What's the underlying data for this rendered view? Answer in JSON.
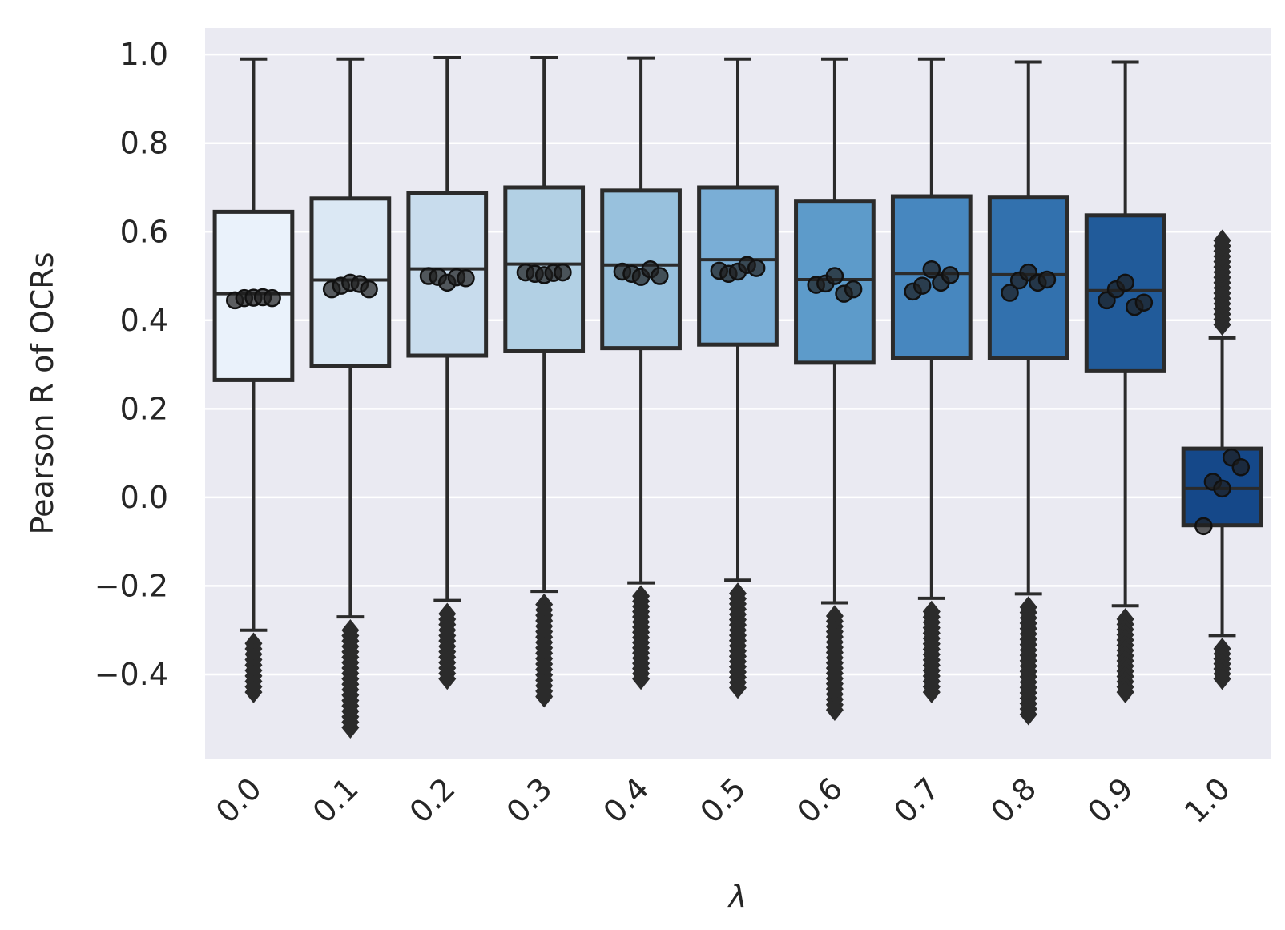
{
  "chart_data": {
    "type": "box",
    "xlabel": "λ",
    "ylabel": "Pearson R of OCRs",
    "categories": [
      "0.0",
      "0.1",
      "0.2",
      "0.3",
      "0.4",
      "0.5",
      "0.6",
      "0.7",
      "0.8",
      "0.9",
      "1.0"
    ],
    "yticks": [
      "1.0",
      "0.8",
      "0.6",
      "0.4",
      "0.2",
      "0.0",
      "−0.2",
      "−0.4"
    ],
    "ylim": [
      -0.59,
      1.06
    ],
    "grid": true,
    "boxes": [
      {
        "q1": 0.265,
        "median": 0.46,
        "q3": 0.645,
        "whisker_low": -0.3,
        "whisker_high": 0.99,
        "outlier_min": -0.44,
        "outlier_max": null,
        "points": [
          0.445,
          0.45,
          0.451,
          0.452,
          0.45
        ]
      },
      {
        "q1": 0.297,
        "median": 0.491,
        "q3": 0.675,
        "whisker_low": -0.27,
        "whisker_high": 0.99,
        "outlier_min": -0.52,
        "outlier_max": null,
        "points": [
          0.47,
          0.478,
          0.485,
          0.482,
          0.47
        ]
      },
      {
        "q1": 0.32,
        "median": 0.516,
        "q3": 0.688,
        "whisker_low": -0.233,
        "whisker_high": 0.993,
        "outlier_min": -0.41,
        "outlier_max": null,
        "points": [
          0.5,
          0.498,
          0.485,
          0.497,
          0.495
        ]
      },
      {
        "q1": 0.33,
        "median": 0.527,
        "q3": 0.7,
        "whisker_low": -0.212,
        "whisker_high": 0.993,
        "outlier_min": -0.45,
        "outlier_max": null,
        "points": [
          0.508,
          0.505,
          0.502,
          0.507,
          0.508
        ]
      },
      {
        "q1": 0.337,
        "median": 0.525,
        "q3": 0.693,
        "whisker_low": -0.193,
        "whisker_high": 0.992,
        "outlier_min": -0.41,
        "outlier_max": null,
        "points": [
          0.51,
          0.505,
          0.498,
          0.515,
          0.5
        ]
      },
      {
        "q1": 0.345,
        "median": 0.537,
        "q3": 0.7,
        "whisker_low": -0.187,
        "whisker_high": 0.99,
        "outlier_min": -0.43,
        "outlier_max": null,
        "points": [
          0.512,
          0.505,
          0.51,
          0.525,
          0.518
        ]
      },
      {
        "q1": 0.304,
        "median": 0.492,
        "q3": 0.668,
        "whisker_low": -0.238,
        "whisker_high": 0.99,
        "outlier_min": -0.48,
        "outlier_max": null,
        "points": [
          0.48,
          0.483,
          0.5,
          0.46,
          0.47
        ]
      },
      {
        "q1": 0.315,
        "median": 0.506,
        "q3": 0.68,
        "whisker_low": -0.228,
        "whisker_high": 0.99,
        "outlier_min": -0.44,
        "outlier_max": null,
        "points": [
          0.465,
          0.478,
          0.515,
          0.485,
          0.502
        ]
      },
      {
        "q1": 0.315,
        "median": 0.503,
        "q3": 0.677,
        "whisker_low": -0.218,
        "whisker_high": 0.983,
        "outlier_min": -0.49,
        "outlier_max": null,
        "points": [
          0.462,
          0.49,
          0.508,
          0.485,
          0.492
        ]
      },
      {
        "q1": 0.285,
        "median": 0.467,
        "q3": 0.637,
        "whisker_low": -0.245,
        "whisker_high": 0.983,
        "outlier_min": -0.44,
        "outlier_max": null,
        "points": [
          0.445,
          0.47,
          0.485,
          0.43,
          0.44
        ]
      },
      {
        "q1": -0.063,
        "median": 0.02,
        "q3": 0.11,
        "whisker_low": -0.312,
        "whisker_high": 0.36,
        "outlier_min": -0.41,
        "outlier_max": 0.58,
        "points": [
          -0.065,
          0.035,
          0.02,
          0.09,
          0.068
        ]
      }
    ],
    "box_fill_colors": [
      "#eaf2fb",
      "#dbe8f4",
      "#c8dced",
      "#b2d0e4",
      "#98c1dd",
      "#7aaed6",
      "#5d9bca",
      "#4787bf",
      "#3271ae",
      "#215b9a",
      "#154889"
    ]
  }
}
